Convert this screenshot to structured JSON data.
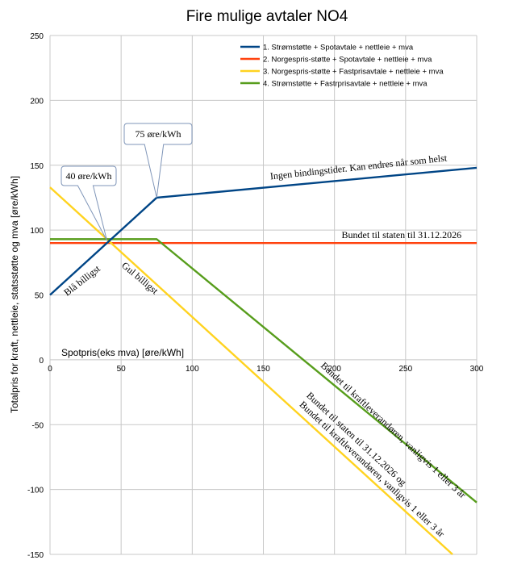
{
  "chart_data": {
    "type": "line",
    "title": "Fire mulige avtaler NO4",
    "xlabel": "Spotpris(eks mva) [øre/kWh]",
    "ylabel": "Totalpris for kraft, nettleie, statsstøtte og mva [øre/kWh]",
    "xlim": [
      0,
      300
    ],
    "ylim": [
      -150,
      250
    ],
    "x_ticks": [
      0,
      50,
      100,
      150,
      200,
      250,
      300
    ],
    "y_ticks": [
      -150,
      -100,
      -50,
      0,
      50,
      100,
      150,
      200,
      250
    ],
    "grid": true,
    "legend_position": "top-right",
    "series": [
      {
        "name": "1. Strømstøtte + Spotavtale + nettleie + mva",
        "color": "#004586",
        "points": [
          [
            0,
            50
          ],
          [
            75,
            125
          ],
          [
            300,
            148
          ]
        ]
      },
      {
        "name": "2. Norgespris-støtte + Spotavtale + nettleie + mva",
        "color": "#ff420e",
        "points": [
          [
            0,
            90
          ],
          [
            300,
            90
          ]
        ]
      },
      {
        "name": "3. Norgespris-støtte + Fastprisavtale + nettleie + mva",
        "color": "#ffd320",
        "points": [
          [
            0,
            133
          ],
          [
            283,
            -150
          ]
        ]
      },
      {
        "name": "4. Strømstøtte + Fastrprisavtale + nettleie + mva",
        "color": "#579d1c",
        "points": [
          [
            0,
            93
          ],
          [
            75,
            93
          ],
          [
            300,
            -110
          ]
        ]
      }
    ],
    "callouts": [
      {
        "text": "75 øre/kWh",
        "x": 75,
        "y": 125
      },
      {
        "text": "40 øre/kWh",
        "x": 40,
        "y": 92
      }
    ],
    "annotations": [
      {
        "text": "Ingen bindingstider. Kan endres når som helst",
        "x": 155,
        "y": 139,
        "angle": -6
      },
      {
        "text": "Bundet til staten til 31.12.2026",
        "x": 205,
        "y": 94,
        "angle": 0
      },
      {
        "text": "Blå billigst",
        "x": 12,
        "y": 49,
        "angle": -38
      },
      {
        "text": "Gul billigst",
        "x": 50,
        "y": 72,
        "angle": 40
      },
      {
        "text": "Bundet til kraftleverandøren, vanligvis 1 eller 3 år",
        "x": 190,
        "y": -5,
        "angle": 43
      },
      {
        "text": "Bundet til staten til 31.12.2026 og",
        "x": 180,
        "y": -28,
        "angle": 43
      },
      {
        "text": "Bundet til kraftleverandøren, vanligvis 1 eller 3 år",
        "x": 175,
        "y": -35,
        "angle": 43
      }
    ]
  }
}
